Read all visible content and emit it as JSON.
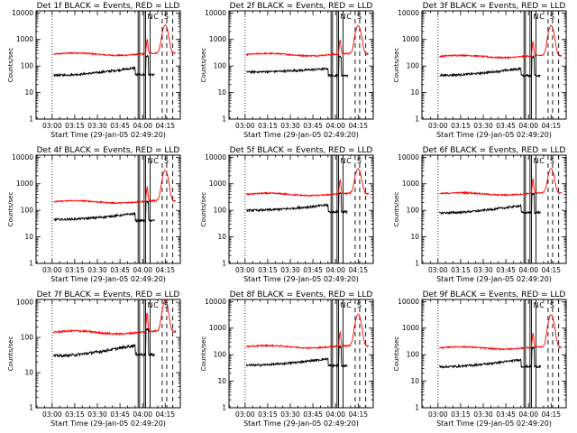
{
  "chart_data": {
    "type": "line",
    "panel_layout": "3x3 grid",
    "common": {
      "xlabel": "Start Time (29-Jan-05 02:49:20)",
      "ylabel": "Counts/sec",
      "x_ticks": [
        "03:00",
        "03:15",
        "03:30",
        "03:45",
        "04:00",
        "04:15"
      ],
      "y_scale": "log",
      "y_ticks": [
        "1",
        "10",
        "100",
        "1000",
        "10000"
      ],
      "series_colors": {
        "events": "#000000",
        "lld": "#ff0000"
      },
      "dotted_marker_time": "03:00",
      "solid_marker_times": [
        "03:57",
        "03:58",
        "04:01",
        "04:02",
        "04:05"
      ],
      "dashed_marker_times": [
        "04:13",
        "04:16",
        "04:20"
      ],
      "annotations": [
        "N",
        "C",
        "S"
      ],
      "xlim": [
        "02:49:20",
        "04:25"
      ],
      "grid": false
    },
    "panels": [
      {
        "title": "Det 1f BLACK = Events, RED = LLD",
        "ylim": [
          1,
          12000
        ],
        "lld_base": 280,
        "events_base": 45,
        "events_end": 85,
        "lld_peak": 3200
      },
      {
        "title": "Det 2f BLACK = Events, RED = LLD",
        "ylim": [
          1,
          12000
        ],
        "lld_base": 270,
        "events_base": 60,
        "events_end": 80,
        "lld_peak": 3000
      },
      {
        "title": "Det 3f BLACK = Events, RED = LLD",
        "ylim": [
          1,
          12000
        ],
        "lld_base": 230,
        "events_base": 45,
        "events_end": 80,
        "lld_peak": 3100
      },
      {
        "title": "Det 4f BLACK = Events, RED = LLD",
        "ylim": [
          1,
          12000
        ],
        "lld_base": 210,
        "events_base": 45,
        "events_end": 75,
        "lld_peak": 3000
      },
      {
        "title": "Det 5f BLACK = Events, RED = LLD",
        "ylim": [
          1,
          12000
        ],
        "lld_base": 400,
        "events_base": 100,
        "events_end": 160,
        "lld_peak": 3300
      },
      {
        "title": "Det 6f BLACK = Events, RED = LLD",
        "ylim": [
          1,
          12000
        ],
        "lld_base": 420,
        "events_base": 80,
        "events_end": 150,
        "lld_peak": 3300
      },
      {
        "title": "Det 7f BLACK = Events, RED = LLD",
        "ylim": [
          1,
          1200
        ],
        "lld_base": 140,
        "events_base": 30,
        "events_end": 60,
        "lld_peak": 1000
      },
      {
        "title": "Det 8f BLACK = Events, RED = LLD",
        "ylim": [
          1,
          12000
        ],
        "lld_base": 200,
        "events_base": 40,
        "events_end": 70,
        "lld_peak": 3100
      },
      {
        "title": "Det 9f BLACK = Events, RED = LLD",
        "ylim": [
          1,
          12000
        ],
        "lld_base": 180,
        "events_base": 35,
        "events_end": 65,
        "lld_peak": 3000
      }
    ]
  }
}
